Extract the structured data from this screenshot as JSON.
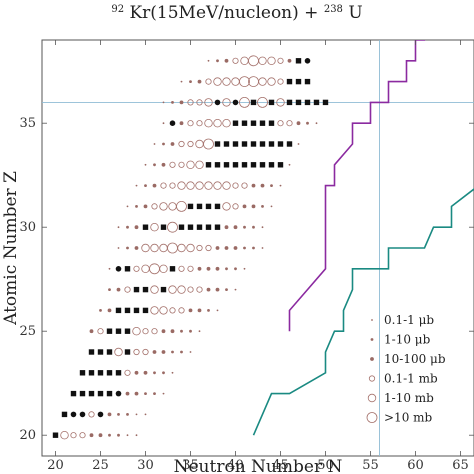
{
  "chart_data": {
    "type": "scatter",
    "title": {
      "projectile_mass": "92",
      "projectile_rest": "Kr(15MeV/nucleon) + ",
      "target_mass": "238",
      "target_rest": "U"
    },
    "xlabel": "Neutron Number N",
    "ylabel": "Atomic Number Z",
    "xlim": [
      18.5,
      66.5
    ],
    "ylim": [
      19,
      39
    ],
    "xticks": [
      20,
      25,
      30,
      35,
      40,
      45,
      50,
      55,
      60,
      65
    ],
    "yticks": [
      20,
      25,
      30,
      35
    ],
    "grid": false,
    "legend_position": "bottom-right",
    "reference_lines": {
      "vertical_n": 56,
      "horizontal_z": 36,
      "color": "#8fbcd4"
    },
    "legend": [
      {
        "label": "0.1-1 μb",
        "category": 1
      },
      {
        "label": "1-10 μb",
        "category": 2
      },
      {
        "label": "10-100 μb",
        "category": 3
      },
      {
        "label": "0.1-1 mb",
        "category": 4
      },
      {
        "label": "1-10 mb",
        "category": 5
      },
      {
        "label": ">10 mb",
        "category": 6
      }
    ],
    "rows": [
      {
        "z": 20,
        "n_start": 20,
        "cat": [
          6,
          5,
          4,
          4,
          3,
          3,
          2,
          2,
          1,
          1
        ]
      },
      {
        "z": 21,
        "n_start": 21,
        "cat": [
          5,
          5,
          4,
          4,
          3,
          3,
          2,
          2,
          1,
          1
        ]
      },
      {
        "z": 22,
        "n_start": 22,
        "cat": [
          6,
          6,
          5,
          5,
          4,
          4,
          3,
          3,
          2,
          2,
          1
        ]
      },
      {
        "z": 23,
        "n_start": 23,
        "cat": [
          5,
          5,
          6,
          5,
          4,
          4,
          3,
          3,
          2,
          2,
          1
        ]
      },
      {
        "z": 24,
        "n_start": 24,
        "cat": [
          5,
          5,
          6,
          5,
          5,
          4,
          4,
          3,
          3,
          2,
          2,
          1
        ]
      },
      {
        "z": 25,
        "n_start": 24,
        "cat": [
          3,
          4,
          5,
          6,
          5,
          5,
          4,
          4,
          3,
          3,
          2,
          2,
          1
        ]
      },
      {
        "z": 26,
        "n_start": 25,
        "cat": [
          2,
          3,
          4,
          5,
          6,
          6,
          5,
          5,
          4,
          4,
          3,
          3,
          2,
          1
        ]
      },
      {
        "z": 27,
        "n_start": 26,
        "cat": [
          2,
          3,
          4,
          5,
          5,
          5,
          6,
          5,
          5,
          4,
          4,
          3,
          3,
          2,
          1
        ]
      },
      {
        "z": 28,
        "n_start": 26,
        "cat": [
          1,
          2,
          3,
          4,
          5,
          6,
          5,
          5,
          4,
          4,
          3,
          3,
          3,
          2,
          2,
          1
        ]
      },
      {
        "z": 29,
        "n_start": 27,
        "cat": [
          1,
          2,
          3,
          5,
          5,
          5,
          6,
          5,
          5,
          4,
          4,
          3,
          3,
          3,
          2,
          2,
          1
        ]
      },
      {
        "z": 30,
        "n_start": 27,
        "cat": [
          1,
          2,
          3,
          4,
          5,
          5,
          6,
          6,
          6,
          5,
          5,
          4,
          3,
          3,
          2,
          2,
          1
        ]
      },
      {
        "z": 31,
        "n_start": 28,
        "cat": [
          1,
          2,
          3,
          4,
          5,
          5,
          6,
          6,
          6,
          6,
          5,
          5,
          4,
          3,
          3,
          2,
          1
        ]
      },
      {
        "z": 32,
        "n_start": 29,
        "cat": [
          1,
          2,
          3,
          4,
          4,
          5,
          5,
          5,
          5,
          5,
          5,
          4,
          4,
          3,
          3,
          2,
          1
        ]
      },
      {
        "z": 33,
        "n_start": 30,
        "cat": [
          1,
          2,
          3,
          4,
          4,
          5,
          5,
          6,
          6,
          5,
          5,
          4,
          4,
          3,
          3,
          2,
          1
        ]
      },
      {
        "z": 34,
        "n_start": 31,
        "cat": [
          1,
          2,
          3,
          4,
          4,
          5,
          6,
          6,
          6,
          6,
          5,
          5,
          4,
          4,
          3,
          2,
          1
        ]
      },
      {
        "z": 35,
        "n_start": 32,
        "cat": [
          1,
          2,
          3,
          4,
          4,
          5,
          5,
          5,
          5,
          6,
          6,
          5,
          5,
          4,
          4,
          3,
          2,
          1
        ]
      },
      {
        "z": 36,
        "n_start": 32,
        "cat": [
          1,
          2,
          3,
          4,
          4,
          5,
          5,
          5,
          6,
          6,
          6,
          6,
          6,
          5,
          5,
          4,
          3,
          2,
          1
        ]
      },
      {
        "z": 37,
        "n_start": 34,
        "cat": [
          1,
          2,
          3,
          4,
          5,
          5,
          5,
          6,
          6,
          5,
          5,
          4,
          3,
          2,
          1
        ]
      },
      {
        "z": 38,
        "n_start": 37,
        "cat": [
          1,
          2,
          3,
          4,
          5,
          6,
          5,
          5,
          4,
          3,
          2,
          1
        ]
      }
    ],
    "filled_squares": [
      [
        20,
        20
      ],
      [
        21,
        21
      ],
      [
        22,
        22
      ],
      [
        23,
        22
      ],
      [
        24,
        22
      ],
      [
        25,
        22
      ],
      [
        26,
        22
      ],
      [
        23,
        23
      ],
      [
        24,
        23
      ],
      [
        25,
        23
      ],
      [
        26,
        23
      ],
      [
        27,
        23
      ],
      [
        24,
        24
      ],
      [
        25,
        24
      ],
      [
        26,
        24
      ],
      [
        28,
        24
      ],
      [
        26,
        25
      ],
      [
        27,
        25
      ],
      [
        28,
        25
      ],
      [
        27,
        26
      ],
      [
        28,
        26
      ],
      [
        29,
        26
      ],
      [
        30,
        26
      ],
      [
        29,
        27
      ],
      [
        30,
        27
      ],
      [
        32,
        27
      ],
      [
        28,
        28
      ],
      [
        33,
        28
      ],
      [
        30,
        30
      ],
      [
        32,
        30
      ],
      [
        34,
        30
      ],
      [
        35,
        30
      ],
      [
        36,
        30
      ],
      [
        37,
        30
      ],
      [
        38,
        30
      ],
      [
        35,
        31
      ],
      [
        36,
        31
      ],
      [
        37,
        31
      ],
      [
        38,
        31
      ],
      [
        37,
        33
      ],
      [
        38,
        33
      ],
      [
        39,
        33
      ],
      [
        40,
        33
      ],
      [
        41,
        33
      ],
      [
        42,
        33
      ],
      [
        43,
        33
      ],
      [
        44,
        33
      ],
      [
        45,
        33
      ],
      [
        38,
        34
      ],
      [
        39,
        34
      ],
      [
        40,
        34
      ],
      [
        41,
        34
      ],
      [
        42,
        34
      ],
      [
        43,
        34
      ],
      [
        44,
        34
      ],
      [
        45,
        34
      ],
      [
        46,
        34
      ],
      [
        40,
        35
      ],
      [
        41,
        35
      ],
      [
        42,
        35
      ],
      [
        43,
        35
      ],
      [
        44,
        35
      ],
      [
        42,
        36
      ],
      [
        44,
        36
      ],
      [
        46,
        36
      ],
      [
        47,
        36
      ],
      [
        48,
        36
      ],
      [
        49,
        36
      ],
      [
        50,
        36
      ],
      [
        46,
        37
      ],
      [
        47,
        37
      ],
      [
        48,
        37
      ],
      [
        49,
        37
      ],
      [
        50,
        37
      ],
      [
        47,
        38
      ],
      [
        49,
        38
      ],
      [
        50,
        38
      ]
    ],
    "filled_circles": [
      [
        22,
        21
      ],
      [
        23,
        21
      ],
      [
        25,
        21
      ],
      [
        27,
        22
      ],
      [
        27,
        28
      ],
      [
        33,
        35
      ],
      [
        48,
        38
      ],
      [
        38,
        36
      ],
      [
        40,
        36
      ]
    ],
    "lines": [
      {
        "color": "#8b2aa0",
        "points": [
          [
            46,
            25
          ],
          [
            46,
            26
          ],
          [
            48,
            27
          ],
          [
            50,
            28
          ],
          [
            50,
            32
          ],
          [
            51,
            32
          ],
          [
            51,
            33
          ],
          [
            53,
            34
          ],
          [
            53,
            35
          ],
          [
            55,
            35
          ],
          [
            55,
            36
          ],
          [
            57,
            36
          ],
          [
            57,
            37
          ],
          [
            59,
            37
          ],
          [
            59,
            38
          ],
          [
            60,
            38
          ],
          [
            60,
            39
          ],
          [
            61,
            39
          ],
          [
            62,
            40
          ],
          [
            67,
            40
          ]
        ]
      },
      {
        "color": "#1a8a82",
        "points": [
          [
            42,
            20
          ],
          [
            44,
            22
          ],
          [
            46,
            22
          ],
          [
            50,
            23
          ],
          [
            50,
            24
          ],
          [
            51,
            25
          ],
          [
            52,
            25
          ],
          [
            52,
            26
          ],
          [
            53,
            27
          ],
          [
            53,
            28
          ],
          [
            57,
            28
          ],
          [
            57,
            29
          ],
          [
            61,
            29
          ],
          [
            62,
            30
          ],
          [
            64,
            30
          ],
          [
            64,
            31
          ],
          [
            67,
            32
          ]
        ]
      }
    ]
  }
}
